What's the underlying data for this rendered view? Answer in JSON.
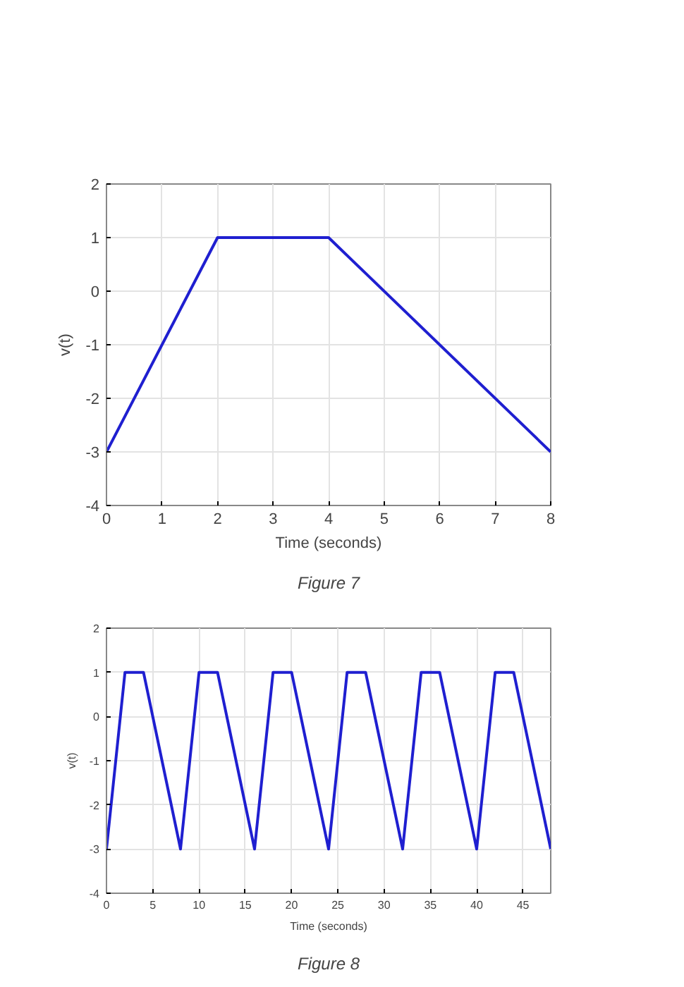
{
  "chart_data": [
    {
      "type": "line",
      "xlabel": "Time (seconds)",
      "ylabel": "v(t)",
      "annotations": [
        "Figure 7"
      ],
      "series": [
        {
          "color": "#1f1fd0",
          "x": [
            0,
            2,
            4,
            8
          ],
          "values": [
            -3,
            1,
            1,
            -3
          ]
        }
      ],
      "xlim": [
        0,
        8
      ],
      "xticks": [
        0,
        1,
        2,
        3,
        4,
        5,
        6,
        7,
        8
      ],
      "ylim": [
        -4,
        2
      ],
      "yticks": [
        -4,
        -3,
        -2,
        -1,
        0,
        1,
        2
      ],
      "grid": true,
      "line_style": "solid"
    },
    {
      "type": "line",
      "xlabel": "Time (seconds)",
      "ylabel": "v(t)",
      "annotations": [
        "Figure 8"
      ],
      "series": [
        {
          "color": "#1f1fd0",
          "x": [
            0,
            2,
            4,
            8,
            10,
            12,
            16,
            18,
            20,
            24,
            26,
            28,
            32,
            34,
            36,
            40,
            42,
            44,
            48
          ],
          "values": [
            -3,
            1,
            1,
            -3,
            1,
            1,
            -3,
            1,
            1,
            -3,
            1,
            1,
            -3,
            1,
            1,
            -3,
            1,
            1,
            -3
          ]
        }
      ],
      "xlim": [
        0,
        48
      ],
      "xticks": [
        0,
        5,
        10,
        15,
        20,
        25,
        30,
        35,
        40,
        45
      ],
      "ylim": [
        -4,
        2
      ],
      "yticks": [
        -4,
        -3,
        -2,
        -1,
        0,
        1,
        2
      ],
      "grid": true,
      "line_style": "solid"
    }
  ]
}
